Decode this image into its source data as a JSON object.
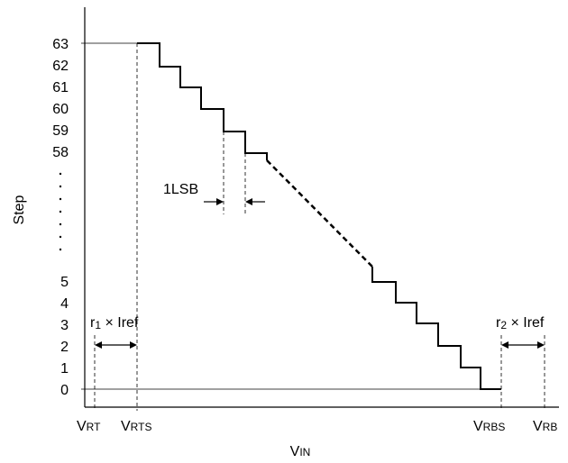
{
  "diagram": {
    "y_axis_label": "Step",
    "x_axis_label": {
      "main": "V",
      "sub": "IN"
    },
    "y_ticks": [
      "63",
      "62",
      "61",
      "60",
      "59",
      "58",
      "5",
      "4",
      "3",
      "2",
      "1",
      "0"
    ],
    "x_labels": [
      {
        "id": "vrt",
        "main": "V",
        "sub": "RT"
      },
      {
        "id": "vrts",
        "main": "V",
        "sub": "RTS"
      },
      {
        "id": "vrbs",
        "main": "V",
        "sub": "RBS"
      },
      {
        "id": "vrb",
        "main": "V",
        "sub": "RB"
      }
    ],
    "annotations": {
      "lsb": "1LSB",
      "r1": {
        "r": "r",
        "sub": "1",
        "rest": " × Iref"
      },
      "r2": {
        "r": "r",
        "sub": "2",
        "rest": " × Iref"
      }
    }
  }
}
